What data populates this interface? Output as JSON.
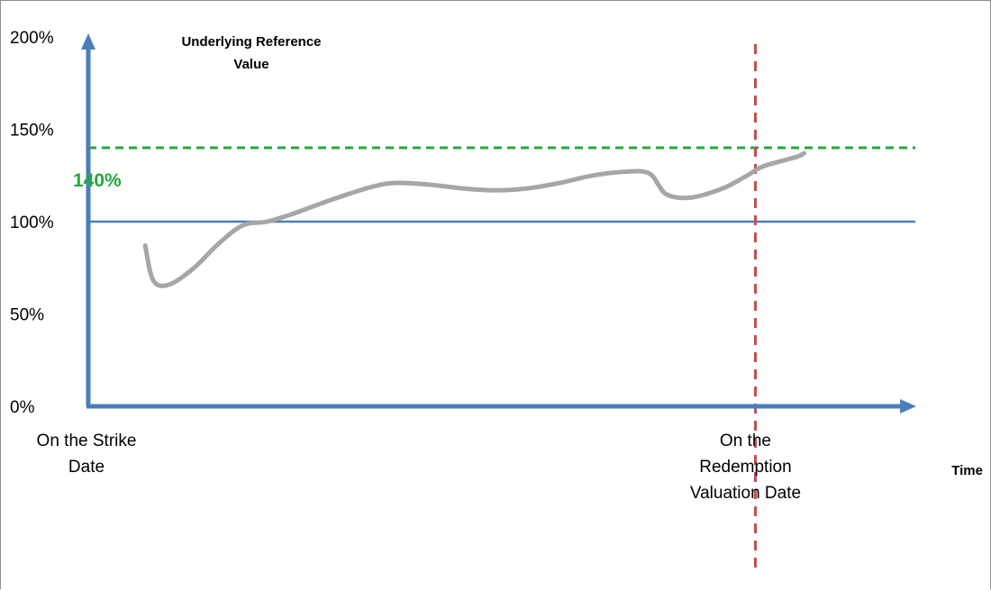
{
  "chart_data": {
    "type": "line",
    "ylabel_lines": [
      "Underlying Reference",
      "Value"
    ],
    "xlabel": "Time",
    "y_ticks": [
      {
        "value": 0,
        "label": "0%"
      },
      {
        "value": 50,
        "label": "50%"
      },
      {
        "value": 100,
        "label": "100%"
      },
      {
        "value": 150,
        "label": "150%"
      },
      {
        "value": 200,
        "label": "200%"
      }
    ],
    "ylim": [
      0,
      200
    ],
    "xlim": [
      0,
      100
    ],
    "x_categories": [
      {
        "x": 0,
        "lines": [
          "On the Strike",
          "Date"
        ]
      },
      {
        "x": 82,
        "lines": [
          "On the",
          "Redemption",
          "Valuation Date"
        ]
      }
    ],
    "reference_level": {
      "value": 100,
      "color": "#4a7ebb"
    },
    "barrier": {
      "value": 140,
      "label": "140%",
      "color": "#1faa3d"
    },
    "valuation_marker": {
      "x": 82,
      "color": "#c0504d"
    },
    "series": [
      {
        "color": "#a6a6a6",
        "points": [
          [
            7,
            87
          ],
          [
            8,
            68
          ],
          [
            10,
            66
          ],
          [
            13,
            75
          ],
          [
            16,
            88
          ],
          [
            19,
            98
          ],
          [
            22,
            100
          ],
          [
            25,
            104
          ],
          [
            30,
            112
          ],
          [
            35,
            119
          ],
          [
            38,
            121
          ],
          [
            42,
            120
          ],
          [
            46,
            118
          ],
          [
            50,
            117
          ],
          [
            54,
            118
          ],
          [
            58,
            121
          ],
          [
            62,
            125
          ],
          [
            66,
            127
          ],
          [
            69,
            126
          ],
          [
            71,
            115
          ],
          [
            74,
            113
          ],
          [
            78,
            118
          ],
          [
            81,
            125
          ],
          [
            83,
            130
          ],
          [
            87,
            135
          ],
          [
            88,
            137
          ]
        ]
      }
    ]
  }
}
